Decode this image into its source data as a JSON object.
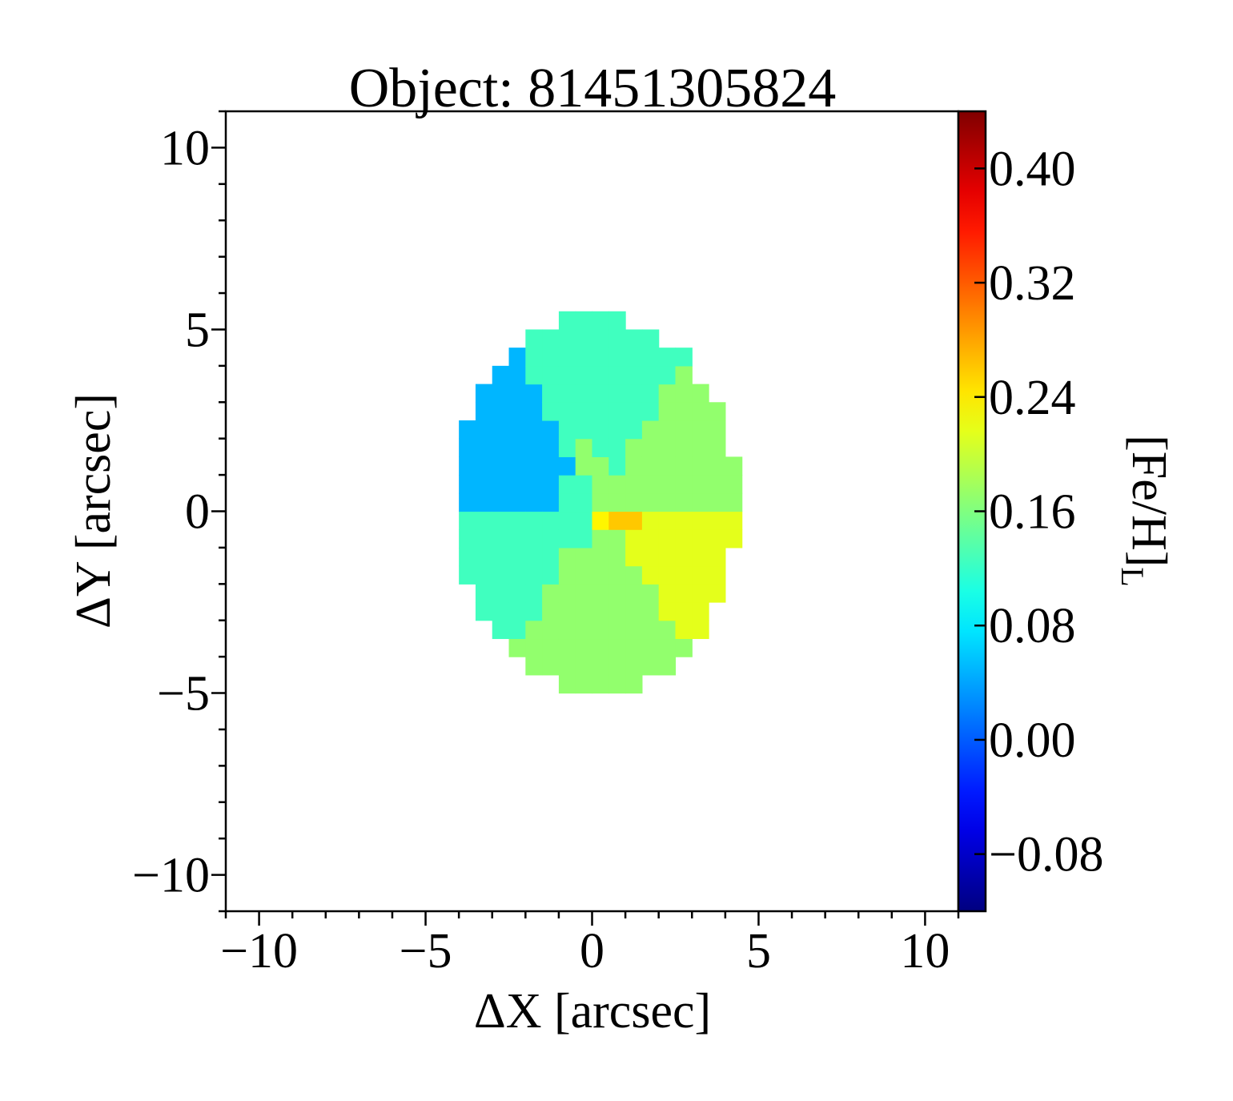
{
  "chart_data": {
    "type": "heatmap",
    "title": "Object: 81451305824",
    "xlabel": "ΔX [arcsec]",
    "ylabel": "ΔY [arcsec]",
    "colorbar_label": "[Fe/H]",
    "colorbar_label_sub": "L",
    "xlim": [
      -11,
      11
    ],
    "ylim": [
      -11,
      11
    ],
    "clim": [
      -0.12,
      0.44
    ],
    "colormap": "jet",
    "x_ticks": [
      {
        "value": -10,
        "label": "−10"
      },
      {
        "value": -5,
        "label": "−5"
      },
      {
        "value": 0,
        "label": "0"
      },
      {
        "value": 5,
        "label": "5"
      },
      {
        "value": 10,
        "label": "10"
      }
    ],
    "y_ticks": [
      {
        "value": 10,
        "label": "10"
      },
      {
        "value": 5,
        "label": "5"
      },
      {
        "value": 0,
        "label": "0"
      },
      {
        "value": -5,
        "label": "−5"
      },
      {
        "value": -10,
        "label": "−10"
      }
    ],
    "colorbar_ticks": [
      {
        "value": 0.4,
        "label": "0.40"
      },
      {
        "value": 0.32,
        "label": "0.32"
      },
      {
        "value": 0.24,
        "label": "0.24"
      },
      {
        "value": 0.16,
        "label": "0.16"
      },
      {
        "value": 0.08,
        "label": "0.08"
      },
      {
        "value": 0.0,
        "label": "0.00"
      },
      {
        "value": -0.08,
        "label": "−0.08"
      }
    ],
    "map": {
      "center": [
        0.1,
        0.2
      ],
      "semi_axes": [
        4.3,
        5.2
      ],
      "pixel_size": 0.5,
      "bins": [
        {
          "name": "top-bin",
          "from_deg": 55,
          "to_deg": 120,
          "value": 0.125
        },
        {
          "name": "upper-left-bin",
          "from_deg": 120,
          "to_deg": 180,
          "value": 0.05
        },
        {
          "name": "lower-left-bin",
          "from_deg": 180,
          "to_deg": 238,
          "value": 0.125
        },
        {
          "name": "bottom-bin",
          "from_deg": 238,
          "to_deg": 305,
          "value": 0.17
        },
        {
          "name": "lower-right-bin",
          "from_deg": 305,
          "to_deg": 360,
          "value": 0.215
        },
        {
          "name": "upper-right-bin",
          "from_deg": 0,
          "to_deg": 55,
          "value": 0.17
        }
      ],
      "core_bins": [
        {
          "name": "core-left",
          "x": -0.55,
          "y": 0.6,
          "value": 0.125
        },
        {
          "name": "core-top",
          "x": -0.2,
          "y": 1.25,
          "value": 0.17
        },
        {
          "name": "core-right",
          "x": 0.65,
          "y": 0.55,
          "value": 0.17
        },
        {
          "name": "core-lower-left",
          "x": -0.35,
          "y": -0.55,
          "value": 0.125
        },
        {
          "name": "core-center",
          "x": 0.15,
          "y": -0.25,
          "value": 0.235
        },
        {
          "name": "core-peak",
          "x": 0.75,
          "y": -0.15,
          "value": 0.26
        },
        {
          "name": "core-lower-right",
          "x": 0.6,
          "y": -0.8,
          "value": 0.17
        }
      ]
    }
  }
}
